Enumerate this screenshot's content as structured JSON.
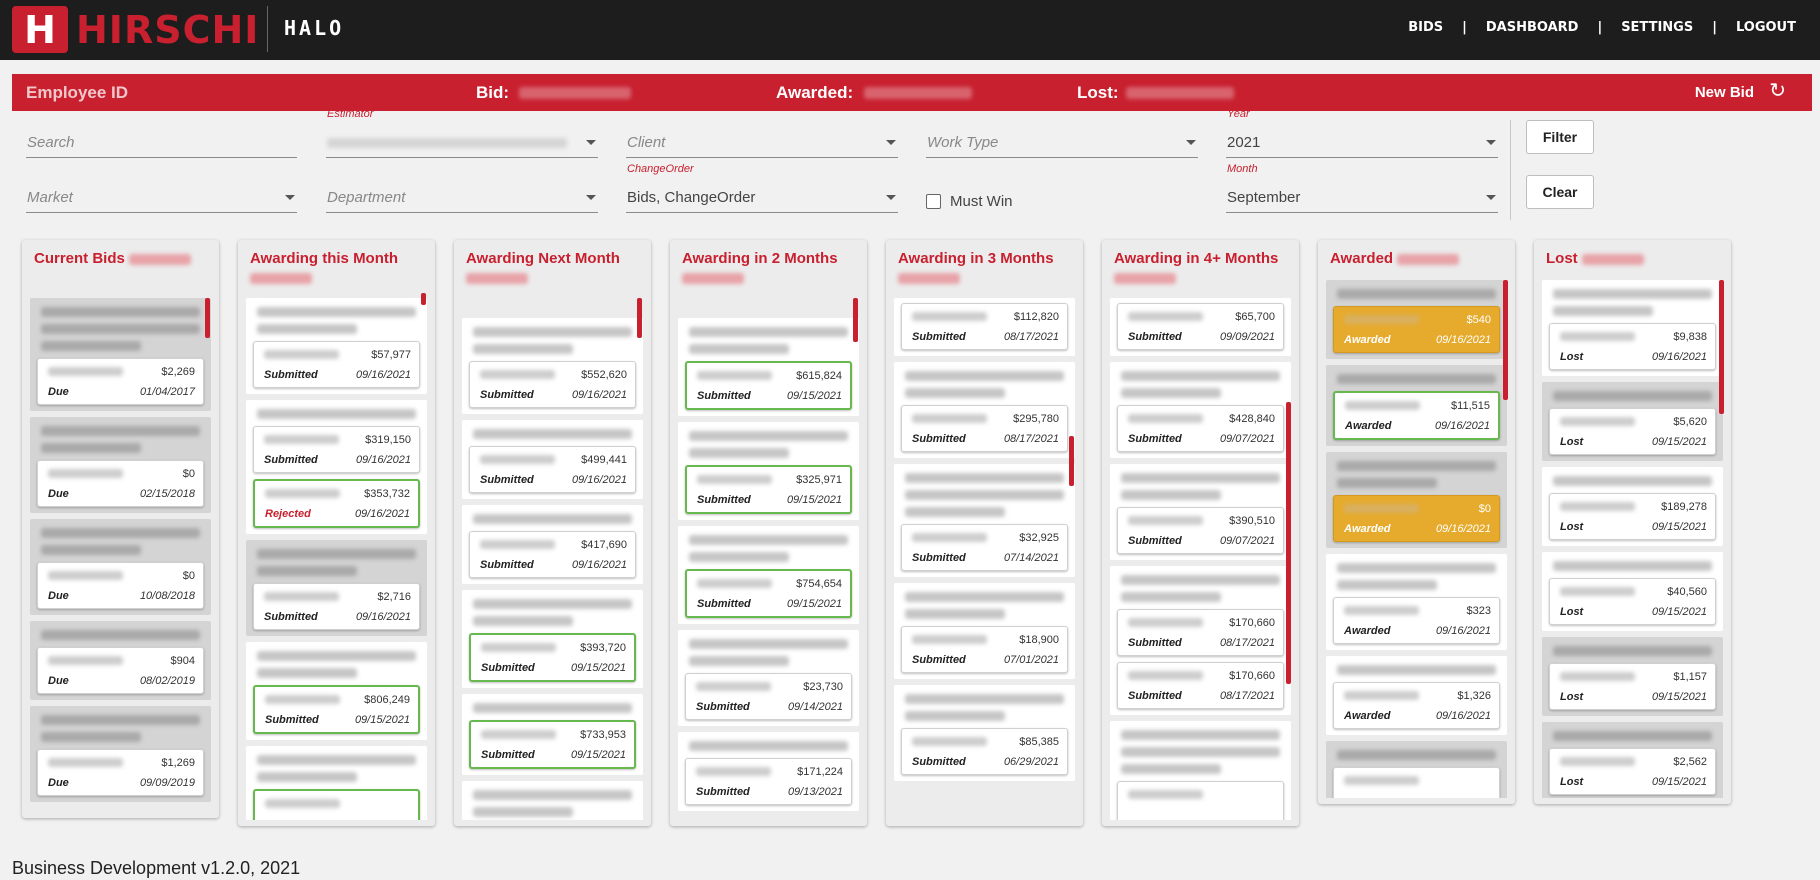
{
  "header": {
    "brand": "HIRSCHI",
    "brand_initial": "H",
    "app_name": "HALO",
    "nav": [
      "BIDS",
      "DASHBOARD",
      "SETTINGS",
      "LOGOUT"
    ],
    "nav_separator": "|"
  },
  "summary": {
    "employee_id_label": "Employee ID",
    "bid_label": "Bid:",
    "awarded_label": "Awarded:",
    "lost_label": "Lost:",
    "new_bid_label": "New Bid",
    "refresh_icon": "↻"
  },
  "filters": {
    "search_placeholder": "Search",
    "estimator_label": "Estimator",
    "client_placeholder": "Client",
    "work_type_placeholder": "Work Type",
    "year_label": "Year",
    "year_value": "2021",
    "market_placeholder": "Market",
    "department_placeholder": "Department",
    "change_order_label": "ChangeOrder",
    "change_order_value": "Bids, ChangeOrder",
    "must_win_label": "Must Win",
    "month_label": "Month",
    "month_value": "September",
    "filter_button": "Filter",
    "clear_button": "Clear"
  },
  "columns": [
    {
      "title": "Current Bids",
      "groups": [
        {
          "gray": true,
          "lines": 3,
          "card": {
            "amount": "$2,269",
            "status": "Due",
            "date": "01/04/2017"
          }
        },
        {
          "gray": true,
          "lines": 2,
          "card": {
            "amount": "$0",
            "status": "Due",
            "date": "02/15/2018"
          }
        },
        {
          "gray": true,
          "lines": 2,
          "card": {
            "amount": "$0",
            "status": "Due",
            "date": "10/08/2018"
          }
        },
        {
          "gray": true,
          "lines": 1,
          "card": {
            "amount": "$904",
            "status": "Due",
            "date": "08/02/2019"
          }
        },
        {
          "gray": true,
          "lines": 2,
          "card": {
            "amount": "$1,269",
            "status": "Due",
            "date": "09/09/2019"
          }
        }
      ]
    },
    {
      "title": "Awarding this Month",
      "groups": [
        {
          "gray": false,
          "lines": 2,
          "card": {
            "amount": "$57,977",
            "status": "Submitted",
            "date": "09/16/2021"
          }
        },
        {
          "gray": false,
          "lines": 1,
          "card": {
            "amount": "$319,150",
            "status": "Submitted",
            "date": "09/16/2021"
          },
          "card2": {
            "amount": "$353,732",
            "status": "Rejected",
            "date": "09/16/2021",
            "green": true
          }
        },
        {
          "gray": true,
          "lines": 2,
          "card": {
            "amount": "$2,716",
            "status": "Submitted",
            "date": "09/16/2021"
          }
        },
        {
          "gray": false,
          "lines": 2,
          "card": {
            "amount": "$806,249",
            "status": "Submitted",
            "date": "09/15/2021",
            "green": true
          }
        },
        {
          "gray": false,
          "lines": 2,
          "card": {
            "amount": "",
            "status": "",
            "date": "",
            "green": true
          }
        }
      ]
    },
    {
      "title": "Awarding Next Month",
      "groups": [
        {
          "gray": false,
          "lines": 2,
          "card": {
            "amount": "$552,620",
            "status": "Submitted",
            "date": "09/16/2021"
          }
        },
        {
          "gray": false,
          "lines": 1,
          "card": {
            "amount": "$499,441",
            "status": "Submitted",
            "date": "09/16/2021"
          }
        },
        {
          "gray": false,
          "lines": 1,
          "card": {
            "amount": "$417,690",
            "status": "Submitted",
            "date": "09/16/2021"
          }
        },
        {
          "gray": false,
          "lines": 2,
          "card": {
            "amount": "$393,720",
            "status": "Submitted",
            "date": "09/15/2021",
            "green": true
          }
        },
        {
          "gray": false,
          "lines": 1,
          "card": {
            "amount": "$733,953",
            "status": "Submitted",
            "date": "09/15/2021",
            "green": true
          }
        },
        {
          "gray": false,
          "lines": 2,
          "card": {
            "amount": "",
            "status": "",
            "date": ""
          }
        }
      ]
    },
    {
      "title": "Awarding in 2 Months",
      "groups": [
        {
          "gray": false,
          "lines": 2,
          "card": {
            "amount": "$615,824",
            "status": "Submitted",
            "date": "09/15/2021",
            "green": true
          }
        },
        {
          "gray": false,
          "lines": 2,
          "card": {
            "amount": "$325,971",
            "status": "Submitted",
            "date": "09/15/2021",
            "green": true
          }
        },
        {
          "gray": false,
          "lines": 2,
          "card": {
            "amount": "$754,654",
            "status": "Submitted",
            "date": "09/15/2021",
            "green": true
          }
        },
        {
          "gray": false,
          "lines": 2,
          "card": {
            "amount": "$23,730",
            "status": "Submitted",
            "date": "09/14/2021"
          }
        },
        {
          "gray": false,
          "lines": 1,
          "card": {
            "amount": "$171,224",
            "status": "Submitted",
            "date": "09/13/2021"
          }
        }
      ]
    },
    {
      "title": "Awarding in 3 Months",
      "groups": [
        {
          "gray": false,
          "lines": 0,
          "card": {
            "amount": "$112,820",
            "status": "Submitted",
            "date": "08/17/2021"
          }
        },
        {
          "gray": false,
          "lines": 2,
          "card": {
            "amount": "$295,780",
            "status": "Submitted",
            "date": "08/17/2021"
          }
        },
        {
          "gray": false,
          "lines": 3,
          "card": {
            "amount": "$32,925",
            "status": "Submitted",
            "date": "07/14/2021"
          }
        },
        {
          "gray": false,
          "lines": 2,
          "card": {
            "amount": "$18,900",
            "status": "Submitted",
            "date": "07/01/2021"
          }
        },
        {
          "gray": false,
          "lines": 2,
          "card": {
            "amount": "$85,385",
            "status": "Submitted",
            "date": "06/29/2021"
          }
        }
      ]
    },
    {
      "title": "Awarding in 4+ Months",
      "groups": [
        {
          "gray": false,
          "lines": 0,
          "card": {
            "amount": "$65,700",
            "status": "Submitted",
            "date": "09/09/2021"
          }
        },
        {
          "gray": false,
          "lines": 2,
          "card": {
            "amount": "$428,840",
            "status": "Submitted",
            "date": "09/07/2021"
          }
        },
        {
          "gray": false,
          "lines": 2,
          "card": {
            "amount": "$390,510",
            "status": "Submitted",
            "date": "09/07/2021"
          }
        },
        {
          "gray": false,
          "lines": 2,
          "card": {
            "amount": "$170,660",
            "status": "Submitted",
            "date": "08/17/2021"
          },
          "card2": {
            "amount": "$170,660",
            "status": "Submitted",
            "date": "08/17/2021"
          }
        },
        {
          "gray": false,
          "lines": 3,
          "card": {
            "amount": "",
            "status": "",
            "date": ""
          }
        }
      ]
    },
    {
      "title": "Awarded",
      "groups": [
        {
          "gray": true,
          "lines": 1,
          "card": {
            "amount": "$540",
            "status": "Awarded",
            "date": "09/16/2021",
            "gold": true
          }
        },
        {
          "gray": true,
          "lines": 1,
          "card": {
            "amount": "$11,515",
            "status": "Awarded",
            "date": "09/16/2021",
            "green": true
          }
        },
        {
          "gray": true,
          "lines": 2,
          "card": {
            "amount": "$0",
            "status": "Awarded",
            "date": "09/16/2021",
            "gold": true
          }
        },
        {
          "gray": false,
          "lines": 2,
          "card": {
            "amount": "$323",
            "status": "Awarded",
            "date": "09/16/2021"
          }
        },
        {
          "gray": false,
          "lines": 1,
          "card": {
            "amount": "$1,326",
            "status": "Awarded",
            "date": "09/16/2021"
          }
        },
        {
          "gray": true,
          "lines": 1,
          "card": {
            "amount": "",
            "status": "",
            "date": ""
          }
        }
      ]
    },
    {
      "title": "Lost",
      "groups": [
        {
          "gray": false,
          "lines": 2,
          "card": {
            "amount": "$9,838",
            "status": "Lost",
            "date": "09/16/2021"
          }
        },
        {
          "gray": true,
          "lines": 1,
          "card": {
            "amount": "$5,620",
            "status": "Lost",
            "date": "09/15/2021"
          }
        },
        {
          "gray": false,
          "lines": 1,
          "card": {
            "amount": "$189,278",
            "status": "Lost",
            "date": "09/15/2021"
          }
        },
        {
          "gray": false,
          "lines": 1,
          "card": {
            "amount": "$40,560",
            "status": "Lost",
            "date": "09/15/2021"
          }
        },
        {
          "gray": true,
          "lines": 1,
          "card": {
            "amount": "$1,157",
            "status": "Lost",
            "date": "09/15/2021"
          }
        },
        {
          "gray": true,
          "lines": 1,
          "card": {
            "amount": "$2,562",
            "status": "Lost",
            "date": "09/15/2021"
          }
        }
      ]
    }
  ],
  "footer": "Business Development v1.2.0, 2021"
}
